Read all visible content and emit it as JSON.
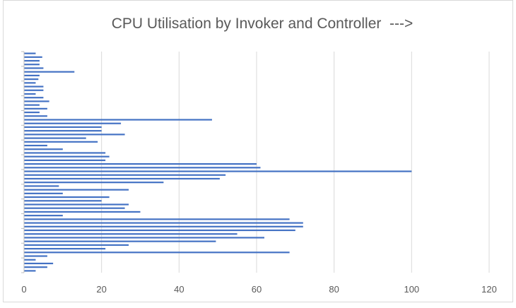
{
  "chart_data": {
    "type": "bar",
    "orientation": "horizontal",
    "title": "CPU Utilisation by Invoker and Controller  --->",
    "xlabel": "",
    "ylabel": "",
    "xlim": [
      0,
      120
    ],
    "x_ticks": [
      0,
      20,
      40,
      60,
      80,
      100,
      120
    ],
    "grid": true,
    "legend": "none",
    "bar_color": "#4472c4",
    "series": [
      {
        "values": [
          3,
          4.7,
          4,
          4,
          5,
          13,
          4,
          3.7,
          3,
          5,
          5,
          3,
          5,
          6.5,
          4,
          6,
          4,
          6,
          48.5,
          25,
          20,
          20,
          26,
          16,
          19,
          6,
          10,
          21,
          22,
          21,
          60,
          61,
          100,
          52,
          50.5,
          36,
          9,
          27,
          10,
          22,
          20,
          27,
          26,
          30,
          10,
          68.5,
          72,
          72,
          70,
          55,
          62,
          49.5,
          27,
          21,
          68.5,
          6,
          3,
          7.5,
          6,
          3
        ]
      }
    ]
  }
}
